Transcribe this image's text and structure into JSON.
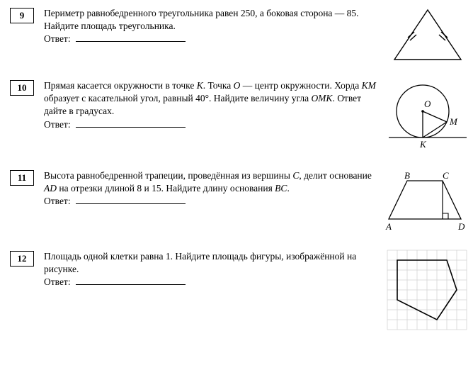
{
  "problems": [
    {
      "number": "9",
      "text": "Периметр равнобедренного треугольника равен 250, а боковая сторона — 85. Найдите площадь треугольника.",
      "answer_label": "Ответ:",
      "diagram": {
        "type": "isosceles-triangle-with-ticks",
        "stroke": "#000",
        "stroke_width": 1.4
      }
    },
    {
      "number": "10",
      "text": "Прямая касается окружности в точке <i>K</i>. Точка <i>O</i> — центр окружности. Хорда <i>KM</i> образует с касательной угол, равный 40°. Найдите величину угла <i>OMK</i>. Ответ дайте в градусах.",
      "answer_label": "Ответ:",
      "diagram": {
        "type": "circle-tangent-chord",
        "labels": {
          "O": "O",
          "K": "K",
          "M": "M"
        },
        "stroke": "#000",
        "stroke_width": 1.3
      }
    },
    {
      "number": "11",
      "text": "Высота равнобедренной трапеции, проведённая из вершины <i>C</i>, делит основание <i>AD</i> на отрезки длиной 8 и 15. Найдите длину основания <i>BC</i>.",
      "answer_label": "Ответ:",
      "diagram": {
        "type": "isosceles-trapezoid-height",
        "labels": {
          "A": "A",
          "B": "B",
          "C": "C",
          "D": "D"
        },
        "stroke": "#000",
        "stroke_width": 1.3
      }
    },
    {
      "number": "12",
      "text": "Площадь одной клетки равна 1. Найдите площадь фигуры, изображённой на рисунке.",
      "answer_label": "Ответ:",
      "diagram": {
        "type": "grid-polygon",
        "grid_cells": 8,
        "cell_size": 14,
        "grid_color": "#d0d0d0",
        "polygon_points": [
          [
            1,
            1
          ],
          [
            6,
            1
          ],
          [
            7,
            4
          ],
          [
            5,
            7
          ],
          [
            1,
            5
          ]
        ],
        "stroke": "#000",
        "stroke_width": 1.6
      }
    }
  ]
}
